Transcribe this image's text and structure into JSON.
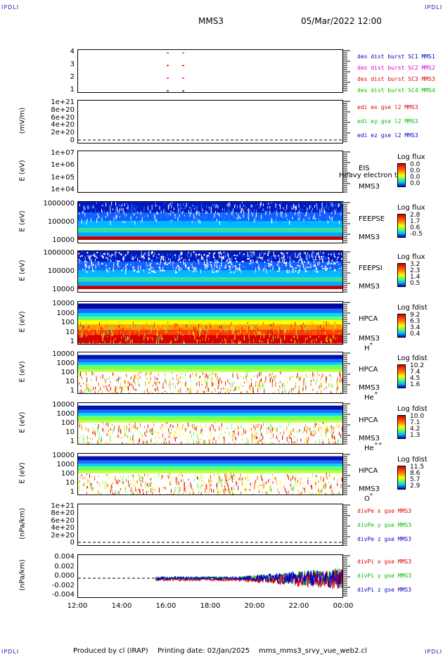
{
  "corners": {
    "top_left": "IPDLI",
    "top_right": "IPDLI",
    "bottom_left": "IPDLI",
    "bottom_right": "IPDLI"
  },
  "header": {
    "spacecraft": "MMS3",
    "datetime": "05/Mar/2022 12:00"
  },
  "footer": {
    "produced_by": "Produced by cl (IRAP)",
    "printing_date": "Printing date: 02/Jan/2025",
    "filename": "mms_mms3_srvy_vue_web2.cl"
  },
  "colors": {
    "red": "#dd0000",
    "green": "#00c000",
    "blue": "#0000cc",
    "magenta": "#e000e0"
  },
  "chart_data": [
    {
      "type": "scatter",
      "yticks": [
        "4",
        "3",
        "2",
        "1"
      ],
      "legend": [
        {
          "text": "des dist burst SC1 MMS1",
          "color": "#0000cc"
        },
        {
          "text": "des dist burst SC2 MMS2",
          "color": "#e000e0"
        },
        {
          "text": "des dist burst SC3 MMS3",
          "color": "#dd0000"
        },
        {
          "text": "des dist burst SC4 MMS4",
          "color": "#00c000"
        }
      ],
      "series": [
        {
          "name": "des dist burst SC1 MMS1",
          "y": 1,
          "x": [
            16.0,
            16.7
          ]
        },
        {
          "name": "des dist burst SC2 MMS2",
          "y": 2,
          "x": [
            16.0,
            16.7
          ]
        },
        {
          "name": "des dist burst SC3 MMS3",
          "y": 3,
          "x": [
            16.0,
            16.7
          ]
        },
        {
          "name": "des dist burst SC4 MMS4",
          "y": 4,
          "x": [
            16.0,
            16.7
          ]
        }
      ]
    },
    {
      "type": "line",
      "ylabel": "(mV/m)",
      "yticks": [
        "1e+21",
        "8e+20",
        "6e+20",
        "4e+20",
        "2e+20",
        "0"
      ],
      "legend": [
        {
          "text": "edi ex gse l2 MMS3",
          "color": "#dd0000"
        },
        {
          "text": "edi ey gse l2 MMS3",
          "color": "#00c000"
        },
        {
          "text": "edi ez gse l2 MMS3",
          "color": "#0000cc"
        }
      ]
    },
    {
      "type": "heatmap",
      "ylabel": "E (eV)",
      "yticks": [
        "1e+07",
        "1e+06",
        "1e+05",
        "1e+04"
      ],
      "instrument": "EIS",
      "overlay": "Heavy electron to",
      "spacecraft": "MMS3",
      "cbar_title": "Log flux",
      "cbar_ticks": [
        "0.0",
        "0.0",
        "0.0",
        "0.0"
      ]
    },
    {
      "type": "heatmap",
      "ylabel": "E (eV)",
      "yticks": [
        "1000000",
        "100000",
        "10000"
      ],
      "instrument": "FEEPSE",
      "spacecraft": "MMS3",
      "cbar_title": "Log flux",
      "cbar_ticks": [
        "2.8",
        "1.7",
        "0.6",
        "-0.5"
      ]
    },
    {
      "type": "heatmap",
      "ylabel": "E (eV)",
      "yticks": [
        "1000000",
        "100000",
        "10000"
      ],
      "instrument": "FEEPSI",
      "spacecraft": "MMS3",
      "cbar_title": "Log flux",
      "cbar_ticks": [
        "3.2",
        "2.3",
        "1.4",
        "0.5"
      ]
    },
    {
      "type": "heatmap",
      "ylabel": "E (eV)",
      "yticks": [
        "10000",
        "1000",
        "100",
        "10",
        "1"
      ],
      "instrument": "HPCA",
      "spacecraft": "MMS3",
      "species": "H",
      "species_sup": "+",
      "cbar_title": "Log fdist",
      "cbar_ticks": [
        "9.2",
        "6.3",
        "3.4",
        "0.4"
      ]
    },
    {
      "type": "heatmap",
      "ylabel": "E (eV)",
      "yticks": [
        "10000",
        "1000",
        "100",
        "10",
        "1"
      ],
      "instrument": "HPCA",
      "spacecraft": "MMS3",
      "species": "He",
      "species_sup": "+",
      "cbar_title": "Log fdist",
      "cbar_ticks": [
        "10.2",
        "7.4",
        "4.5",
        "1.6"
      ]
    },
    {
      "type": "heatmap",
      "ylabel": "E (eV)",
      "yticks": [
        "10000",
        "1000",
        "100",
        "10",
        "1"
      ],
      "instrument": "HPCA",
      "spacecraft": "MMS3",
      "species": "He",
      "species_sup": "++",
      "cbar_title": "Log fdist",
      "cbar_ticks": [
        "10.0",
        "7.1",
        "4.2",
        "1.3"
      ]
    },
    {
      "type": "heatmap",
      "ylabel": "E (eV)",
      "yticks": [
        "10000",
        "1000",
        "100",
        "10",
        "1"
      ],
      "instrument": "HPCA",
      "spacecraft": "MMS3",
      "species": "O",
      "species_sup": "+",
      "cbar_title": "Log fdist",
      "cbar_ticks": [
        "11.5",
        "8.6",
        "5.7",
        "2.9"
      ]
    },
    {
      "type": "line",
      "ylabel": "(nPa/km)",
      "yticks": [
        "1e+21",
        "8e+20",
        "6e+20",
        "4e+20",
        "2e+20",
        "0"
      ],
      "legend": [
        {
          "text": "divPe x gse MMS3",
          "color": "#dd0000"
        },
        {
          "text": "divPe y gse MMS3",
          "color": "#00c000"
        },
        {
          "text": "divPe z gse MMS3",
          "color": "#0000cc"
        }
      ]
    },
    {
      "type": "line",
      "ylabel": "(nPa/km)",
      "yticks": [
        "0.004",
        "0.002",
        "0.000",
        "-0.002",
        "-0.004"
      ],
      "ylim": [
        -0.005,
        0.005
      ],
      "legend": [
        {
          "text": "divPi x gse MMS3",
          "color": "#dd0000"
        },
        {
          "text": "divPi y gse MMS3",
          "color": "#00c000"
        },
        {
          "text": "divPi z gse MMS3",
          "color": "#0000cc"
        }
      ],
      "data_start_hour": 15.5,
      "data_end_hour": 24.0
    }
  ],
  "x_axis": {
    "ticks": [
      "12:00",
      "14:00",
      "16:00",
      "18:00",
      "20:00",
      "22:00",
      "00:00"
    ],
    "hours": [
      12,
      14,
      16,
      18,
      20,
      22,
      24
    ]
  }
}
